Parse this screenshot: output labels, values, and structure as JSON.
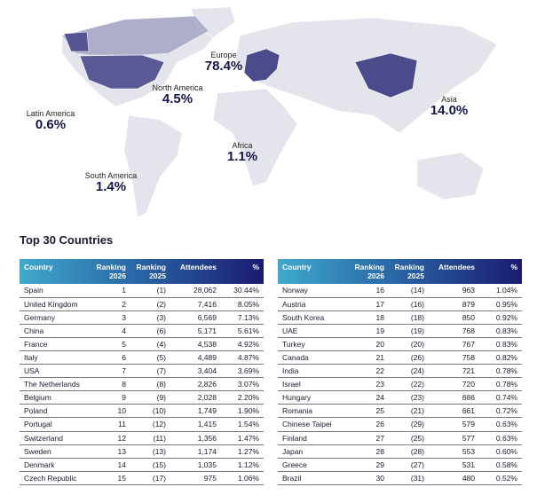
{
  "map": {
    "highlight_color": "#4b4b8c",
    "land_color": "#e4e4ec",
    "regions": [
      {
        "name": "Europe",
        "pct": "78.4%"
      },
      {
        "name": "North America",
        "pct": "4.5%"
      },
      {
        "name": "Latin America",
        "pct": "0.6%"
      },
      {
        "name": "Africa",
        "pct": "1.1%"
      },
      {
        "name": "South America",
        "pct": "1.4%"
      },
      {
        "name": "Asia",
        "pct": "14.0%"
      }
    ]
  },
  "title": "Top 30 Countries",
  "headers": [
    "Country",
    "Ranking 2026",
    "Ranking 2025",
    "Attendees",
    "%"
  ],
  "left_rows": [
    [
      "Spain",
      "1",
      "(1)",
      "28,062",
      "30.44%"
    ],
    [
      "United Kingdom",
      "2",
      "(2)",
      "7,416",
      "8.05%"
    ],
    [
      "Germany",
      "3",
      "(3)",
      "6,569",
      "7.13%"
    ],
    [
      "China",
      "4",
      "(6)",
      "5,171",
      "5.61%"
    ],
    [
      "France",
      "5",
      "(4)",
      "4,538",
      "4.92%"
    ],
    [
      "Italy",
      "6",
      "(5)",
      "4,489",
      "4.87%"
    ],
    [
      "USA",
      "7",
      "(7)",
      "3,404",
      "3.69%"
    ],
    [
      "The Netherlands",
      "8",
      "(8)",
      "2,826",
      "3.07%"
    ],
    [
      "Belgium",
      "9",
      "(9)",
      "2,028",
      "2.20%"
    ],
    [
      "Poland",
      "10",
      "(10)",
      "1,749",
      "1.90%"
    ],
    [
      "Portugal",
      "11",
      "(12)",
      "1,415",
      "1.54%"
    ],
    [
      "Switzerland",
      "12",
      "(11)",
      "1,356",
      "1.47%"
    ],
    [
      "Sweden",
      "13",
      "(13)",
      "1,174",
      "1.27%"
    ],
    [
      "Denmark",
      "14",
      "(15)",
      "1,035",
      "1.12%"
    ],
    [
      "Czech Republic",
      "15",
      "(17)",
      "975",
      "1.06%"
    ]
  ],
  "right_rows": [
    [
      "Norway",
      "16",
      "(14)",
      "963",
      "1.04%"
    ],
    [
      "Austria",
      "17",
      "(16)",
      "879",
      "0.95%"
    ],
    [
      "South Korea",
      "18",
      "(18)",
      "850",
      "0.92%"
    ],
    [
      "UAE",
      "19",
      "(19)",
      "768",
      "0.83%"
    ],
    [
      "Turkey",
      "20",
      "(20)",
      "767",
      "0.83%"
    ],
    [
      "Canada",
      "21",
      "(26)",
      "758",
      "0.82%"
    ],
    [
      "India",
      "22",
      "(24)",
      "721",
      "0.78%"
    ],
    [
      "Israel",
      "23",
      "(22)",
      "720",
      "0.78%"
    ],
    [
      "Hungary",
      "24",
      "(23)",
      "686",
      "0.74%"
    ],
    [
      "Romania",
      "25",
      "(21)",
      "661",
      "0.72%"
    ],
    [
      "Chinese Taipei",
      "26",
      "(29)",
      "579",
      "0.63%"
    ],
    [
      "Finland",
      "27",
      "(25)",
      "577",
      "0.63%"
    ],
    [
      "Japan",
      "28",
      "(28)",
      "553",
      "0.60%"
    ],
    [
      "Greece",
      "29",
      "(27)",
      "531",
      "0.58%"
    ],
    [
      "Brazil",
      "30",
      "(31)",
      "480",
      "0.52%"
    ]
  ]
}
